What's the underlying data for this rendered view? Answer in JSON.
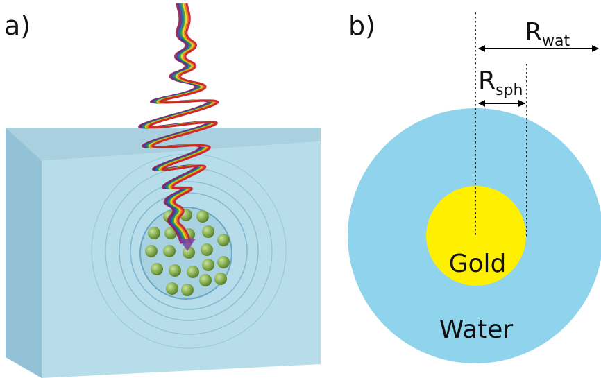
{
  "panel_a": {
    "label": "a)"
  },
  "panel_b": {
    "label": "b)",
    "r_water_main": "R",
    "r_water_sub": "wat",
    "r_sphere_main": "R",
    "r_sphere_sub": "sph",
    "core_label": "Gold",
    "shell_label": "Water"
  },
  "colors": {
    "water_front": "#b5dbe9",
    "water_top": "#a6cfdf",
    "water_side": "#8fbfd3",
    "water_disc": "#8fd3ec",
    "gold": "#ffef00",
    "particle": "#7fa84a",
    "wave_colors": [
      "#9b1b4f",
      "#5a2d82",
      "#1f62a8",
      "#2a9a3a",
      "#f2d21a",
      "#e8771c",
      "#c81e2b"
    ]
  }
}
